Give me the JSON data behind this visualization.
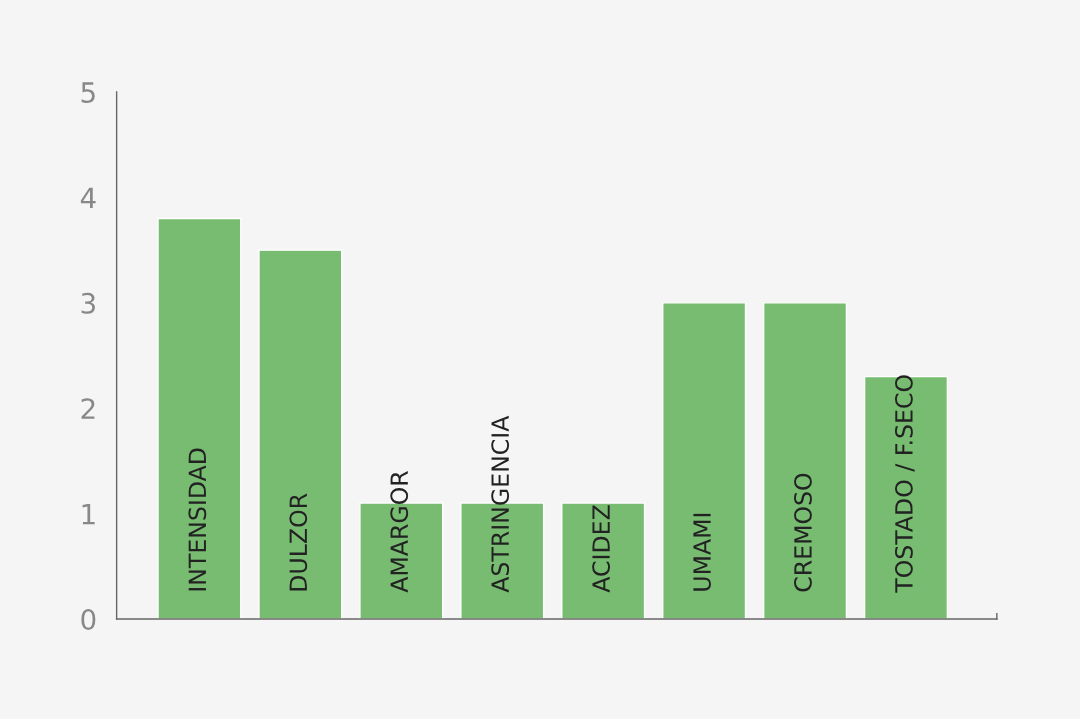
{
  "chart_data": {
    "type": "bar",
    "categories": [
      "INTENSIDAD",
      "DULZOR",
      "AMARGOR",
      "ASTRINGENCIA",
      "ACIDEZ",
      "UMAMI",
      "CREMOSO",
      "TOSTADO / F.SECO"
    ],
    "values": [
      3.8,
      3.5,
      1.1,
      1.1,
      1.1,
      3.0,
      3.0,
      2.3
    ],
    "color": "#77bc71",
    "ylim": [
      0,
      5
    ],
    "yticks": [
      0,
      1,
      2,
      3,
      4,
      5
    ],
    "grid": false,
    "legend": false
  }
}
